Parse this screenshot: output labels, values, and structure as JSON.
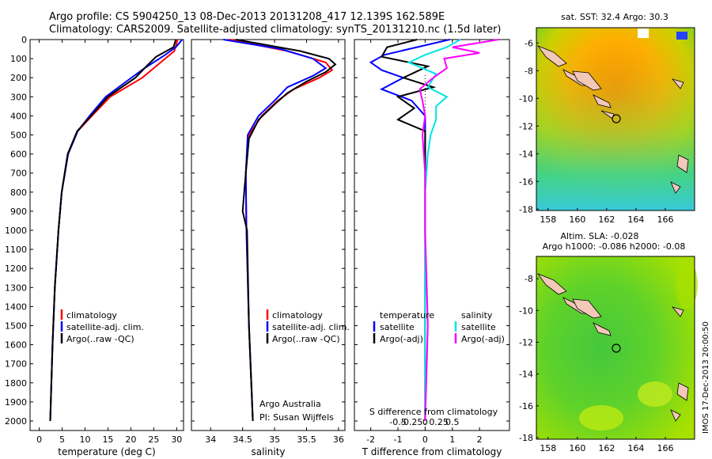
{
  "header": {
    "line1": "Argo profile: CS 5904250_13 08-Dec-2013 20131208_417 12.139S 162.589E",
    "line2": "Climatology: CARS2009. Satellite-adjusted climatology: synTS_20131210.nc (1.5d later)"
  },
  "side_label": "IMOS 17-Dec-2013 20:00:50",
  "colors": {
    "climatology": "#ff0000",
    "satellite": "#0000ff",
    "argo": "#000000",
    "sal_satellite": "#00e5e5",
    "sal_argo": "#ff00ff"
  },
  "chart_data": [
    {
      "type": "line",
      "xlabel": "temperature (deg C)",
      "ylabel": "",
      "xlim": [
        -2,
        31.5
      ],
      "ylim": [
        2050,
        0
      ],
      "xticks": [
        0,
        5,
        10,
        15,
        20,
        25,
        30
      ],
      "yticks": [
        0,
        100,
        200,
        300,
        400,
        500,
        600,
        700,
        800,
        900,
        1000,
        1100,
        1200,
        1300,
        1400,
        1500,
        1600,
        1700,
        1800,
        1900,
        2000
      ],
      "legend": [
        "climatology",
        "satellite-adj. clim.",
        "Argo(..raw -QC)"
      ],
      "series": [
        {
          "name": "climatology",
          "depth": [
            0,
            60,
            120,
            200,
            300,
            400,
            480,
            600,
            800,
            1000,
            1300,
            1600,
            2000
          ],
          "values": [
            30.2,
            29.5,
            26.5,
            22.5,
            15.5,
            11.5,
            8.4,
            6.3,
            4.9,
            4.2,
            3.4,
            2.9,
            2.4
          ]
        },
        {
          "name": "satellite-adj. clim.",
          "depth": [
            0,
            40,
            80,
            150,
            220,
            300,
            400,
            480,
            600,
            800,
            1000,
            1300,
            1600,
            2000
          ],
          "values": [
            31.2,
            29.8,
            27.5,
            23.0,
            19.0,
            14.5,
            11.0,
            8.4,
            6.3,
            4.9,
            4.2,
            3.4,
            2.9,
            2.4
          ]
        },
        {
          "name": "Argo(..raw -QC)",
          "depth": [
            0,
            40,
            90,
            140,
            200,
            300,
            400,
            480,
            600,
            800,
            1000,
            1300,
            1600,
            2000
          ],
          "values": [
            29.8,
            29.3,
            25.5,
            23.4,
            21.0,
            15.0,
            11.3,
            8.3,
            6.2,
            4.9,
            4.2,
            3.4,
            2.9,
            2.4
          ]
        }
      ]
    },
    {
      "type": "line",
      "xlabel": "salinity",
      "xlim": [
        33.7,
        36.1
      ],
      "ylim": [
        2050,
        0
      ],
      "xticks": [
        34,
        34.5,
        35,
        35.5,
        36
      ],
      "legend": [
        "climatology",
        "satellite-adj. clim.",
        "Argo(..raw -QC)"
      ],
      "annotation": [
        "Argo Australia",
        "PI: Susan Wijffels"
      ],
      "series": [
        {
          "name": "climatology",
          "depth": [
            0,
            60,
            120,
            160,
            200,
            260,
            320,
            400,
            500,
            700,
            1000,
            1500,
            2000
          ],
          "values": [
            34.3,
            35.2,
            35.8,
            35.9,
            35.7,
            35.3,
            35.05,
            34.8,
            34.6,
            34.55,
            34.56,
            34.6,
            34.66
          ]
        },
        {
          "name": "satellite-adj. clim.",
          "depth": [
            0,
            50,
            100,
            150,
            190,
            250,
            320,
            400,
            500,
            700,
            1000,
            1500,
            2000
          ],
          "values": [
            34.2,
            35.1,
            35.6,
            35.8,
            35.6,
            35.2,
            35.0,
            34.75,
            34.58,
            34.55,
            34.56,
            34.6,
            34.66
          ]
        },
        {
          "name": "Argo(..raw -QC)",
          "depth": [
            0,
            60,
            100,
            130,
            170,
            220,
            280,
            340,
            420,
            520,
            700,
            900,
            1000,
            1500,
            2000
          ],
          "values": [
            34.4,
            35.4,
            35.85,
            35.95,
            35.8,
            35.5,
            35.2,
            35.0,
            34.75,
            34.6,
            34.55,
            34.5,
            34.57,
            34.6,
            34.66
          ]
        }
      ]
    },
    {
      "type": "line",
      "xlabel": "T difference from climatology",
      "x2label": "S difference from climatology",
      "xlim": [
        -2.6,
        3.1
      ],
      "ylim": [
        2050,
        0
      ],
      "xticks": [
        -2,
        -1,
        0,
        1,
        2
      ],
      "x2ticks": [
        "-0.5",
        "-0.25",
        "0",
        "0.25",
        "0.5"
      ],
      "legend_left_title": "temperature",
      "legend_right_title": "salinity",
      "legend": [
        "satellite",
        "Argo(-adj)",
        "satellite",
        "Argo(-adj)"
      ],
      "series": [
        {
          "name": "temperature satellite",
          "depth": [
            0,
            40,
            80,
            120,
            160,
            200,
            260,
            320,
            400,
            500,
            600,
            800,
            1200,
            2000
          ],
          "values": [
            0.9,
            -0.3,
            -1.5,
            -2.0,
            -1.6,
            -0.8,
            -1.6,
            -0.5,
            0.0,
            0.0,
            0.0,
            0.0,
            0.0,
            0.0
          ]
        },
        {
          "name": "temperature Argo(-adj)",
          "depth": [
            0,
            40,
            90,
            140,
            200,
            250,
            300,
            360,
            420,
            480,
            550,
            700,
            900,
            1200,
            2000
          ],
          "values": [
            -0.3,
            -1.4,
            -1.6,
            0.1,
            -0.8,
            0.3,
            -1.0,
            -0.4,
            -1.0,
            0.0,
            0.0,
            0.0,
            0.0,
            0.0,
            0.0
          ]
        },
        {
          "name": "salinity satellite",
          "depth": [
            0,
            40,
            80,
            120,
            180,
            250,
            300,
            350,
            420,
            500,
            600,
            800,
            1200,
            2000
          ],
          "values": [
            1.3,
            0.8,
            0.0,
            -0.6,
            0.4,
            0.1,
            0.8,
            0.4,
            0.4,
            0.2,
            0.1,
            0.0,
            0.0,
            0.0
          ]
        },
        {
          "name": "salinity Argo(-adj)",
          "depth": [
            0,
            40,
            70,
            100,
            150,
            200,
            260,
            320,
            400,
            500,
            700,
            1000,
            1500,
            2000
          ],
          "values": [
            2.7,
            1.0,
            2.0,
            0.7,
            0.8,
            0.3,
            -0.2,
            -0.1,
            0.0,
            -0.1,
            0.0,
            0.0,
            0.1,
            0.0
          ]
        }
      ]
    },
    {
      "type": "heatmap",
      "title": "sat. SST: 32.4 Argo: 30.3",
      "xticks": [
        158,
        160,
        162,
        164,
        166
      ],
      "yticks": [
        -6,
        -8,
        -10,
        -12,
        -14,
        -16,
        -18
      ],
      "xlim": [
        157.2,
        168.0
      ],
      "ylim": [
        -18.1,
        -4.9
      ],
      "marker": {
        "lon": 162.589,
        "lat": -12.139
      }
    },
    {
      "type": "heatmap",
      "title": "Altim. SLA: -0.028",
      "subtitle": "Argo h1000: -0.086 h2000: -0.08",
      "xticks": [
        158,
        160,
        162,
        164,
        166
      ],
      "yticks": [
        -8,
        -10,
        -12,
        -14,
        -16,
        -18
      ],
      "xlim": [
        157.2,
        168.0
      ],
      "ylim": [
        -18.1,
        -6.6
      ],
      "marker": {
        "lon": 162.589,
        "lat": -12.139
      }
    }
  ]
}
